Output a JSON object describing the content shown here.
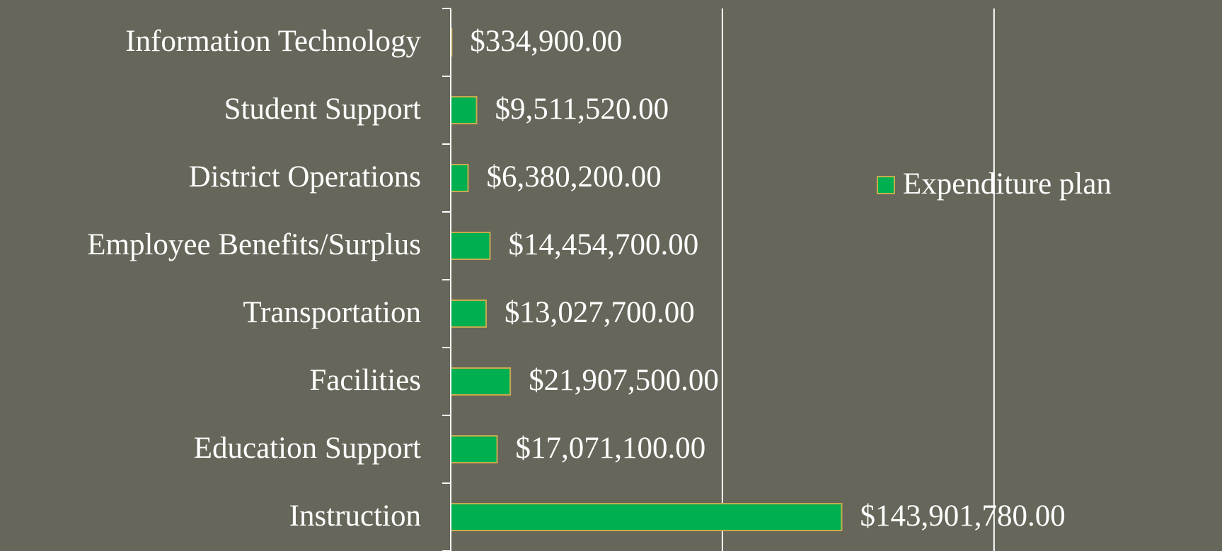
{
  "chart_data": {
    "type": "bar",
    "orientation": "horizontal",
    "categories": [
      "Information Technology",
      "Student Support",
      "District Operations",
      "Employee Benefits/Surplus",
      "Transportation",
      "Facilities",
      "Education Support",
      "Instruction"
    ],
    "series": [
      {
        "name": "Expenditure plan",
        "color": "#00b050",
        "values": [
          334900,
          9511520,
          6380200,
          14454700,
          13027700,
          21907500,
          17071100,
          143901780
        ],
        "value_labels": [
          "$334,900.00",
          "$9,511,520.00",
          "$6,380,200.00",
          "$14,454,700.00",
          "$13,027,700.00",
          "$21,907,500.00",
          "$17,071,100.00",
          "$143,901,780.00"
        ]
      }
    ],
    "xlim": [
      0,
      280000000
    ],
    "xticks": [
      0,
      100000000,
      200000000
    ],
    "grid": true,
    "legend": "right"
  }
}
